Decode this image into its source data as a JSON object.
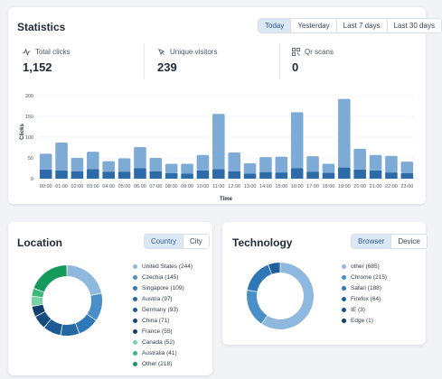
{
  "statistics": {
    "title": "Statistics",
    "periods": [
      "Today",
      "Yesterday",
      "Last 7 days",
      "Last 30 days"
    ],
    "active_period": "Today",
    "metrics": [
      {
        "label": "Total clicks",
        "value": "1,152",
        "icon": "activity-line-icon"
      },
      {
        "label": "Unique visitors",
        "value": "239",
        "icon": "cursor-click-icon"
      },
      {
        "label": "Qr scans",
        "value": "0",
        "icon": "qr-code-icon"
      }
    ]
  },
  "chart_data": {
    "type": "bar",
    "stacked": true,
    "categories": [
      "00:00",
      "01:00",
      "02:00",
      "03:00",
      "04:00",
      "05:00",
      "06:00",
      "07:00",
      "08:00",
      "09:00",
      "10:00",
      "11:00",
      "12:00",
      "13:00",
      "14:00",
      "15:00",
      "16:00",
      "17:00",
      "18:00",
      "19:00",
      "20:00",
      "21:00",
      "22:00",
      "23:00"
    ],
    "series": [
      {
        "color": "#2c6aa8",
        "values": [
          22,
          20,
          18,
          23,
          17,
          17,
          25,
          18,
          13,
          12,
          20,
          23,
          18,
          12,
          16,
          15,
          25,
          17,
          14,
          27,
          22,
          20,
          15,
          13
        ]
      },
      {
        "color": "#7eabd6",
        "values": [
          38,
          67,
          32,
          42,
          25,
          32,
          51,
          32,
          23,
          24,
          37,
          133,
          45,
          25,
          36,
          38,
          135,
          37,
          22,
          165,
          50,
          37,
          40,
          28
        ]
      }
    ],
    "xlabel": "Time",
    "ylabel": "Clicks",
    "yticks": [
      0,
      50,
      100,
      150,
      200
    ],
    "ylim": [
      0,
      200
    ],
    "grid": true
  },
  "location": {
    "title": "Location",
    "tabs": [
      "Country",
      "City"
    ],
    "active_tab": "Country",
    "items": [
      {
        "label": "United States (244)",
        "value": 244,
        "color": "#8fb8de"
      },
      {
        "label": "Czechia (145)",
        "value": 145,
        "color": "#4a90c8"
      },
      {
        "label": "Singapore (109)",
        "value": 109,
        "color": "#2f78b7"
      },
      {
        "label": "Austria (97)",
        "value": 97,
        "color": "#2468a5"
      },
      {
        "label": "Germany (93)",
        "value": 93,
        "color": "#1c5a96"
      },
      {
        "label": "China (71)",
        "value": 71,
        "color": "#164b80"
      },
      {
        "label": "France (55)",
        "value": 55,
        "color": "#123f6d"
      },
      {
        "label": "Canada (52)",
        "value": 52,
        "color": "#77d3a4"
      },
      {
        "label": "Australia (41)",
        "value": 41,
        "color": "#3bb87a"
      },
      {
        "label": "Other (218)",
        "value": 218,
        "color": "#149a5a"
      }
    ]
  },
  "technology": {
    "title": "Technology",
    "tabs": [
      "Browser",
      "Device"
    ],
    "active_tab": "Browser",
    "items": [
      {
        "label": "other (685)",
        "value": 685,
        "color": "#8fb8de"
      },
      {
        "label": "Chrome (215)",
        "value": 215,
        "color": "#4a90c8"
      },
      {
        "label": "Safari (188)",
        "value": 188,
        "color": "#2f78b7"
      },
      {
        "label": "Firefox (64)",
        "value": 64,
        "color": "#1e5f9e"
      },
      {
        "label": "IE (3)",
        "value": 3,
        "color": "#174e86"
      },
      {
        "label": "Edge (1)",
        "value": 1,
        "color": "#123f6d"
      }
    ]
  }
}
